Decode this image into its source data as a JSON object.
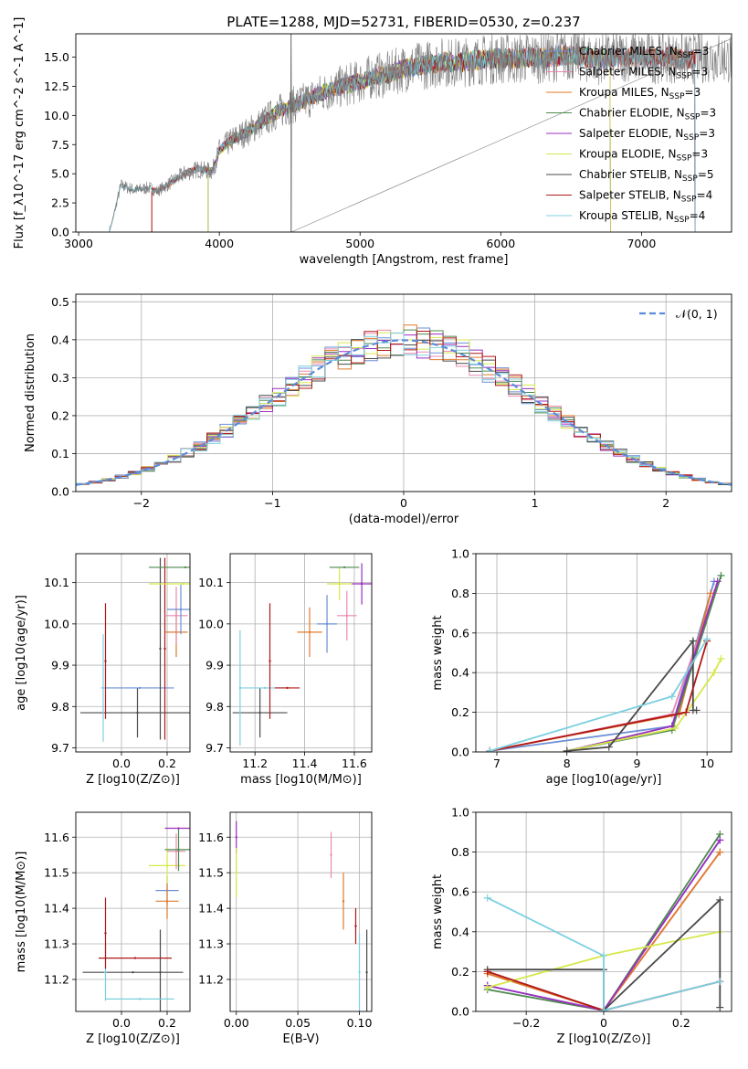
{
  "figure": {
    "title": "PLATE=1288, MJD=52731, FIBERID=0530, z=0.237"
  },
  "models": [
    {
      "label": "Chabrier MILES, N$_{SSP}$=3",
      "label_text": "Chabrier MILES, N",
      "label_sub": "SSP",
      "label_tail": "=3",
      "color": "#6b8fd6"
    },
    {
      "label_text": "Salpeter MILES, N",
      "label_sub": "SSP",
      "label_tail": "=3",
      "color": "#e88ab0"
    },
    {
      "label_text": "Kroupa MILES, N",
      "label_sub": "SSP",
      "label_tail": "=3",
      "color": "#e07a2a"
    },
    {
      "label_text": "Chabrier ELODIE, N",
      "label_sub": "SSP",
      "label_tail": "=3",
      "color": "#4c8a4c"
    },
    {
      "label_text": "Salpeter ELODIE, N",
      "label_sub": "SSP",
      "label_tail": "=3",
      "color": "#9a2fc0"
    },
    {
      "label_text": "Kroupa ELODIE, N",
      "label_sub": "SSP",
      "label_tail": "=3",
      "color": "#d6e84a"
    },
    {
      "label_text": "Chabrier STELIB, N",
      "label_sub": "SSP",
      "label_tail": "=5",
      "color": "#4a4a4a"
    },
    {
      "label_text": "Salpeter STELIB, N",
      "label_sub": "SSP",
      "label_tail": "=4",
      "color": "#b01818"
    },
    {
      "label_text": "Kroupa STELIB, N",
      "label_sub": "SSP",
      "label_tail": "=4",
      "color": "#7ccfe0"
    }
  ],
  "chart_data": [
    {
      "id": "spectrum",
      "type": "line",
      "xlabel": "wavelength [Angstrom, rest frame]",
      "ylabel": "Flux [f_λ10^-17 erg cm^-2 s^-1 A^-1]",
      "xlim": [
        2980,
        7640
      ],
      "ylim": [
        0,
        17
      ],
      "xticks": [
        3000,
        4000,
        5000,
        6000,
        7000
      ],
      "yticks": [
        0.0,
        2.5,
        5.0,
        7.5,
        10.0,
        12.5,
        15.0
      ],
      "legend": "upper-right",
      "data_color": "#808080",
      "data_x": [
        3220,
        3300,
        3400,
        3500,
        3560,
        3650,
        3750,
        3850,
        3950,
        4000,
        4100,
        4200,
        4300,
        4400,
        4500,
        4600,
        4700,
        4800,
        4900,
        5000,
        5100,
        5200,
        5300,
        5400,
        5500,
        5600,
        5700,
        5800,
        5900,
        6000,
        6100,
        6200,
        6300,
        6400,
        6500,
        6600,
        6700,
        6800,
        6900,
        7000,
        7100,
        7200,
        7300,
        7400,
        7500,
        7600
      ],
      "data_y": [
        0.0,
        4.0,
        3.6,
        3.8,
        3.5,
        4.2,
        5.0,
        5.4,
        5.2,
        7.0,
        8.0,
        8.6,
        9.4,
        10.2,
        10.8,
        11.2,
        11.8,
        12.2,
        12.6,
        12.9,
        13.4,
        13.5,
        14.0,
        14.2,
        14.4,
        14.6,
        14.5,
        14.7,
        14.8,
        14.9,
        14.8,
        15.0,
        14.9,
        15.1,
        15.2,
        15.0,
        14.8,
        15.0,
        15.1,
        15.0,
        14.9,
        15.0,
        14.8,
        14.9,
        15.0,
        14.9
      ],
      "model_cut_lo": [
        3520,
        3520,
        3520,
        3920,
        3920,
        3920,
        3220,
        3520,
        3220
      ],
      "model_cut_hi": [
        7380,
        7380,
        7380,
        6780,
        6780,
        6780,
        7380,
        7380,
        7380
      ]
    },
    {
      "id": "residual-histogram",
      "type": "step",
      "xlabel": "(data-model)/error",
      "ylabel": "Normed distribution",
      "xlim": [
        -2.5,
        2.5
      ],
      "ylim": [
        0,
        0.52
      ],
      "xticks": [
        -2,
        -1,
        0,
        1,
        2
      ],
      "yticks": [
        0.0,
        0.1,
        0.2,
        0.3,
        0.4,
        0.5
      ],
      "bin_width": 0.1,
      "legend": "upper-right",
      "reference_label": "𝒩(0, 1)",
      "reference_color": "#5b8bd6"
    },
    {
      "id": "age-vs-Z",
      "type": "scatter",
      "xlabel": "Z [log10(Z/Z⊙)]",
      "ylabel": "age [log10(age/yr)]",
      "xlim": [
        -0.2,
        0.3
      ],
      "ylim": [
        9.69,
        10.17
      ],
      "xticks": [
        0.0,
        0.2
      ],
      "yticks": [
        9.7,
        9.8,
        9.9,
        10.0,
        10.1
      ],
      "points": [
        {
          "m": 6,
          "x": 0.07,
          "y": 9.785,
          "xerr": 0.25,
          "yerr": 0.06
        },
        {
          "m": 8,
          "x": -0.08,
          "y": 9.845,
          "xerr": 0.01,
          "yerr": 0.13
        },
        {
          "m": 0,
          "x": 0.08,
          "y": 9.845,
          "xerr": 0.15,
          "yerr": 0.0
        },
        {
          "m": 7,
          "x": -0.07,
          "y": 9.91,
          "xerr": 0.0,
          "yerr": 0.14
        },
        {
          "m": 6,
          "x": 0.17,
          "y": 9.94,
          "xerr": 0.0,
          "yerr": 0.22
        },
        {
          "m": 7,
          "x": 0.19,
          "y": 9.94,
          "xerr": 0.0,
          "yerr": 0.22
        },
        {
          "m": 2,
          "x": 0.24,
          "y": 9.98,
          "xerr": 0.05,
          "yerr": 0.06
        },
        {
          "m": 1,
          "x": 0.24,
          "y": 10.02,
          "xerr": 0.05,
          "yerr": 0.07
        },
        {
          "m": 0,
          "x": 0.26,
          "y": 10.035,
          "xerr": 0.06,
          "yerr": 0.06
        },
        {
          "m": 5,
          "x": 0.27,
          "y": 10.097,
          "xerr": 0.15,
          "yerr": 0.0
        },
        {
          "m": 3,
          "x": 0.28,
          "y": 10.137,
          "xerr": 0.16,
          "yerr": 0.0
        }
      ]
    },
    {
      "id": "age-vs-mass",
      "type": "scatter",
      "xlabel": "mass [log10(M/M⊙)]",
      "ylabel": "",
      "xlim": [
        11.1,
        11.67
      ],
      "ylim": [
        9.69,
        10.17
      ],
      "xticks": [
        11.2,
        11.4,
        11.6
      ],
      "yticks": [
        9.7,
        9.8,
        9.9,
        10.0,
        10.1
      ],
      "points": [
        {
          "m": 6,
          "x": 11.22,
          "y": 9.785,
          "xerr": 0.11,
          "yerr": 0.06
        },
        {
          "m": 8,
          "x": 11.14,
          "y": 9.845,
          "xerr": 0.0,
          "yerr": 0.14
        },
        {
          "m": 8,
          "x": 11.24,
          "y": 9.845,
          "xerr": 0.1,
          "yerr": 0.0
        },
        {
          "m": 7,
          "x": 11.33,
          "y": 9.845,
          "xerr": 0.05,
          "yerr": 0.0
        },
        {
          "m": 7,
          "x": 11.26,
          "y": 9.91,
          "xerr": 0.0,
          "yerr": 0.14
        },
        {
          "m": 2,
          "x": 11.42,
          "y": 9.98,
          "xerr": 0.05,
          "yerr": 0.06
        },
        {
          "m": 0,
          "x": 11.49,
          "y": 10.0,
          "xerr": 0.04,
          "yerr": 0.07
        },
        {
          "m": 1,
          "x": 11.57,
          "y": 10.02,
          "xerr": 0.04,
          "yerr": 0.06
        },
        {
          "m": 5,
          "x": 11.54,
          "y": 10.097,
          "xerr": 0.05,
          "yerr": 0.04
        },
        {
          "m": 4,
          "x": 11.63,
          "y": 10.097,
          "xerr": 0.04,
          "yerr": 0.05
        },
        {
          "m": 3,
          "x": 11.56,
          "y": 10.137,
          "xerr": 0.06,
          "yerr": 0.0
        }
      ]
    },
    {
      "id": "weight-vs-age",
      "type": "line",
      "xlabel": "age  [log10(age/yr)]",
      "ylabel": "mass weight",
      "xlim": [
        6.7,
        10.35
      ],
      "ylim": [
        0,
        1.0
      ],
      "xticks": [
        7,
        8,
        9,
        10
      ],
      "yticks": [
        0.0,
        0.2,
        0.4,
        0.6,
        0.8,
        1.0
      ],
      "series": [
        {
          "m": 0,
          "x": [
            6.9,
            9.5,
            10.1
          ],
          "y": [
            0.005,
            0.13,
            0.86
          ]
        },
        {
          "m": 1,
          "x": [
            6.9,
            9.5,
            10.1
          ],
          "y": [
            0.005,
            0.19,
            0.8
          ]
        },
        {
          "m": 2,
          "x": [
            6.9,
            9.6,
            10.05
          ],
          "y": [
            0.005,
            0.19,
            0.8
          ]
        },
        {
          "m": 3,
          "x": [
            8.0,
            9.5,
            10.2
          ],
          "y": [
            0.005,
            0.11,
            0.89
          ]
        },
        {
          "m": 4,
          "x": [
            8.0,
            9.5,
            10.15
          ],
          "y": [
            0.005,
            0.13,
            0.86
          ]
        },
        {
          "m": 5,
          "x": [
            8.0,
            9.55,
            10.1,
            10.2
          ],
          "y": [
            0.005,
            0.12,
            0.4,
            0.47
          ]
        },
        {
          "m": 6,
          "x": [
            8.0,
            8.6,
            9.8,
            9.8,
            9.85
          ],
          "y": [
            0.005,
            0.025,
            0.56,
            0.21,
            0.21
          ]
        },
        {
          "m": 7,
          "x": [
            6.9,
            9.7,
            10.0
          ],
          "y": [
            0.005,
            0.2,
            0.56
          ]
        },
        {
          "m": 8,
          "x": [
            6.9,
            9.5,
            10.0
          ],
          "y": [
            0.005,
            0.28,
            0.57
          ]
        }
      ]
    },
    {
      "id": "mass-vs-Z",
      "type": "scatter",
      "xlabel": "Z [log10(Z/Z⊙)]",
      "ylabel": "mass [log10(M/M⊙)]",
      "xlim": [
        -0.2,
        0.3
      ],
      "ylim": [
        11.11,
        11.67
      ],
      "xticks": [
        0.0,
        0.2
      ],
      "yticks": [
        11.2,
        11.3,
        11.4,
        11.5,
        11.6
      ],
      "points": [
        {
          "m": 6,
          "x": 0.05,
          "y": 11.22,
          "xerr": 0.22,
          "yerr": 0.0
        },
        {
          "m": 6,
          "x": 0.17,
          "y": 11.22,
          "xerr": 0.0,
          "yerr": 0.12
        },
        {
          "m": 8,
          "x": 0.08,
          "y": 11.145,
          "xerr": 0.15,
          "yerr": 0.0
        },
        {
          "m": 8,
          "x": -0.07,
          "y": 11.22,
          "xerr": 0.0,
          "yerr": 0.08
        },
        {
          "m": 7,
          "x": 0.06,
          "y": 11.26,
          "xerr": 0.16,
          "yerr": 0.0
        },
        {
          "m": 7,
          "x": -0.07,
          "y": 11.33,
          "xerr": 0.0,
          "yerr": 0.1
        },
        {
          "m": 0,
          "x": 0.2,
          "y": 11.45,
          "xerr": 0.05,
          "yerr": 0.04
        },
        {
          "m": 2,
          "x": 0.2,
          "y": 11.42,
          "xerr": 0.05,
          "yerr": 0.05
        },
        {
          "m": 5,
          "x": 0.2,
          "y": 11.52,
          "xerr": 0.08,
          "yerr": 0.05
        },
        {
          "m": 1,
          "x": 0.24,
          "y": 11.56,
          "xerr": 0.04,
          "yerr": 0.05
        },
        {
          "m": 3,
          "x": 0.25,
          "y": 11.565,
          "xerr": 0.06,
          "yerr": 0.06
        },
        {
          "m": 4,
          "x": 0.25,
          "y": 11.625,
          "xerr": 0.06,
          "yerr": 0.0
        }
      ]
    },
    {
      "id": "mass-vs-ebv",
      "type": "scatter",
      "xlabel": "E(B-V)",
      "ylabel": "",
      "xlim": [
        -0.005,
        0.11
      ],
      "ylim": [
        11.11,
        11.67
      ],
      "xticks": [
        0.0,
        0.05,
        0.1
      ],
      "yticks": [
        11.2,
        11.3,
        11.4,
        11.5,
        11.6
      ],
      "points": [
        {
          "m": 4,
          "x": 0.0,
          "y": 11.6,
          "xerr": 0.0,
          "yerr": 0.045
        },
        {
          "m": 5,
          "x": 0.0,
          "y": 11.5,
          "xerr": 0.0,
          "yerr": 0.07
        },
        {
          "m": 1,
          "x": 0.077,
          "y": 11.55,
          "xerr": 0.0,
          "yerr": 0.065
        },
        {
          "m": 2,
          "x": 0.087,
          "y": 11.42,
          "xerr": 0.0,
          "yerr": 0.08
        },
        {
          "m": 7,
          "x": 0.097,
          "y": 11.35,
          "xerr": 0.0,
          "yerr": 0.05
        },
        {
          "m": 8,
          "x": 0.1,
          "y": 11.22,
          "xerr": 0.0,
          "yerr": 0.11
        },
        {
          "m": 6,
          "x": 0.106,
          "y": 11.22,
          "xerr": 0.0,
          "yerr": 0.12
        }
      ]
    },
    {
      "id": "weight-vs-Z",
      "type": "line",
      "xlabel": "Z [log10(Z/Z⊙)]",
      "ylabel": "mass weight",
      "xlim": [
        -0.33,
        0.33
      ],
      "ylim": [
        0,
        1.0
      ],
      "xticks": [
        -0.2,
        0.0,
        0.2
      ],
      "yticks": [
        0.0,
        0.2,
        0.4,
        0.6,
        0.8,
        1.0
      ],
      "series": [
        {
          "m": 0,
          "x": [
            -0.3,
            0.0,
            0.3
          ],
          "y": [
            0.13,
            0.005,
            0.86
          ]
        },
        {
          "m": 1,
          "x": [
            -0.3,
            0.0,
            0.3
          ],
          "y": [
            0.19,
            0.005,
            0.8
          ]
        },
        {
          "m": 2,
          "x": [
            -0.3,
            0.0,
            0.3
          ],
          "y": [
            0.19,
            0.005,
            0.8
          ]
        },
        {
          "m": 3,
          "x": [
            -0.3,
            0.0,
            0.3
          ],
          "y": [
            0.11,
            0.005,
            0.89
          ]
        },
        {
          "m": 4,
          "x": [
            -0.3,
            0.0,
            0.3
          ],
          "y": [
            0.13,
            0.005,
            0.86
          ]
        },
        {
          "m": 5,
          "x": [
            -0.3,
            0.0,
            0.3
          ],
          "y": [
            0.12,
            0.28,
            0.4
          ]
        },
        {
          "m": 6,
          "x": [
            -0.3,
            0.0,
            0.0,
            0.3,
            0.3
          ],
          "y": [
            0.21,
            0.21,
            0.005,
            0.56,
            0.02
          ]
        },
        {
          "m": 7,
          "x": [
            -0.3,
            0.0,
            0.3
          ],
          "y": [
            0.2,
            0.005,
            0.15
          ]
        },
        {
          "m": 8,
          "x": [
            -0.3,
            0.0,
            0.0,
            0.3
          ],
          "y": [
            0.57,
            0.28,
            0.005,
            0.15
          ]
        }
      ]
    }
  ]
}
